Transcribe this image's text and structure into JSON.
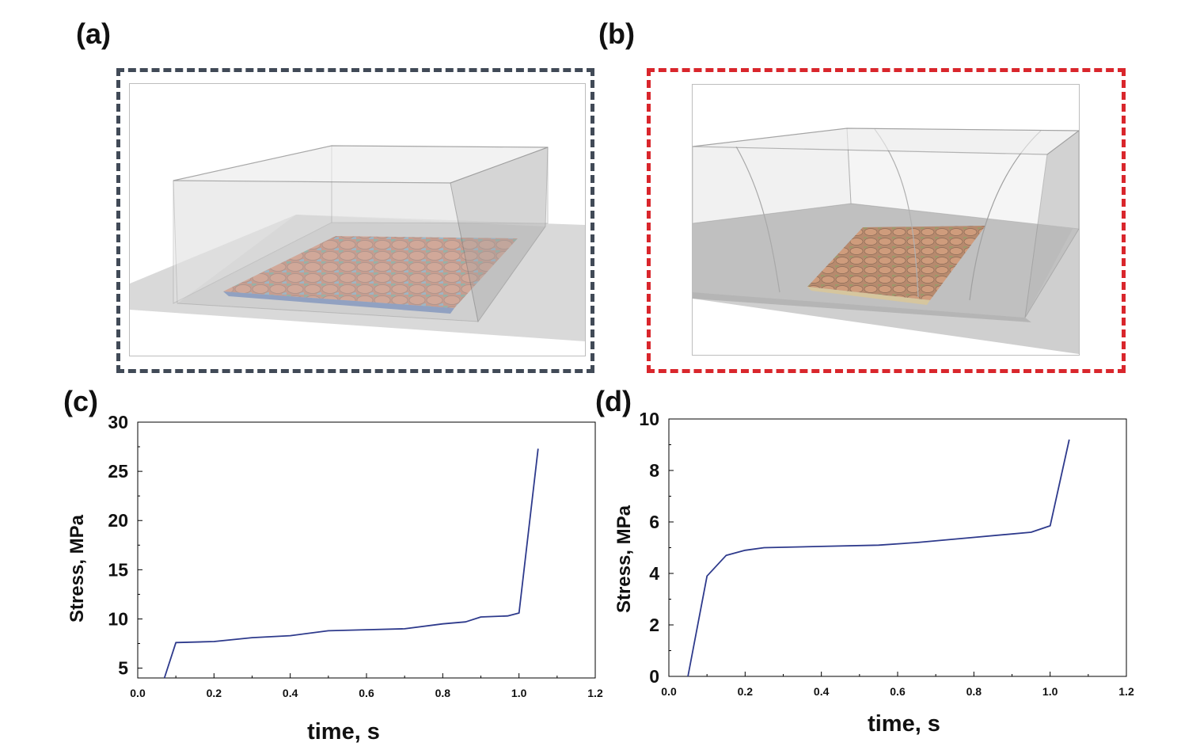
{
  "panels": {
    "a": {
      "label": "(a)",
      "frame_color": "#414a57"
    },
    "b": {
      "label": "(b)",
      "frame_color": "#d9262c"
    },
    "c": {
      "label": "(c)"
    },
    "d": {
      "label": "(d)"
    }
  },
  "colors": {
    "line": "#2e3a8c",
    "box_edge": "#9e9e9e",
    "sheet_warm": "#c9816f",
    "sheet_cool": "#5c8fb0"
  },
  "chart_data": [
    {
      "id": "c",
      "type": "line",
      "title": "",
      "xlabel": "time, s",
      "ylabel": "Stress, MPa",
      "xlim": [
        0.0,
        1.2
      ],
      "ylim": [
        4,
        30
      ],
      "xticks": [
        0.0,
        0.2,
        0.4,
        0.6,
        0.8,
        1.0,
        1.2
      ],
      "xtick_labels": [
        "0.0",
        "0.2",
        "0.4",
        "0.6",
        "0.8",
        "1.0",
        "1.2"
      ],
      "yticks": [
        5,
        10,
        15,
        20,
        25,
        30
      ],
      "ytick_labels": [
        "5",
        "10",
        "15",
        "20",
        "25",
        "30"
      ],
      "series": [
        {
          "name": "stress",
          "x": [
            0.07,
            0.1,
            0.2,
            0.3,
            0.4,
            0.5,
            0.6,
            0.7,
            0.8,
            0.86,
            0.9,
            0.97,
            1.0,
            1.05
          ],
          "y": [
            4.0,
            7.6,
            7.7,
            8.1,
            8.3,
            8.8,
            8.9,
            9.0,
            9.5,
            9.7,
            10.2,
            10.3,
            10.6,
            27.3
          ]
        }
      ]
    },
    {
      "id": "d",
      "type": "line",
      "title": "",
      "xlabel": "time, s",
      "ylabel": "Stress, MPa",
      "xlim": [
        0.0,
        1.2
      ],
      "ylim": [
        0,
        10
      ],
      "xticks": [
        0.0,
        0.2,
        0.4,
        0.6,
        0.8,
        1.0,
        1.2
      ],
      "xtick_labels": [
        "0.0",
        "0.2",
        "0.4",
        "0.6",
        "0.8",
        "1.0",
        "1.2"
      ],
      "yticks": [
        0,
        2,
        4,
        6,
        8,
        10
      ],
      "ytick_labels": [
        "0",
        "2",
        "4",
        "6",
        "8",
        "10"
      ],
      "series": [
        {
          "name": "stress",
          "x": [
            0.05,
            0.1,
            0.15,
            0.2,
            0.25,
            0.4,
            0.55,
            0.65,
            0.8,
            0.95,
            1.0,
            1.05
          ],
          "y": [
            0.0,
            3.9,
            4.7,
            4.9,
            5.0,
            5.05,
            5.1,
            5.2,
            5.4,
            5.6,
            5.85,
            9.2
          ]
        }
      ]
    }
  ]
}
